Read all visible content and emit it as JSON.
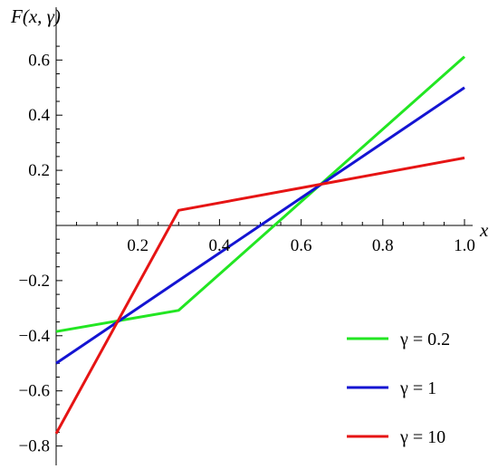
{
  "chart_data": {
    "type": "line",
    "title": "",
    "xlabel": "x",
    "ylabel": "F(x, γ)",
    "xlim": [
      0,
      1.0
    ],
    "ylim": [
      -0.8,
      0.65
    ],
    "xticks": [
      0.2,
      0.4,
      0.6,
      0.8,
      1.0
    ],
    "xtick_labels": [
      "0.2",
      "0.4",
      "0.6",
      "0.8",
      "1.0"
    ],
    "yticks": [
      -0.8,
      -0.6,
      -0.4,
      -0.2,
      0.2,
      0.4,
      0.6
    ],
    "ytick_labels": [
      "−0.8",
      "−0.6",
      "−0.4",
      "−0.2",
      "0.2",
      "0.4",
      "0.6"
    ],
    "grid": false,
    "legend_position": "bottom-right",
    "series": [
      {
        "name": "γ = 0.2",
        "color": "#22e622",
        "x": [
          0,
          0.3,
          1.0
        ],
        "y": [
          -0.385,
          -0.308,
          0.612
        ]
      },
      {
        "name": "γ = 1",
        "color": "#1414d2",
        "x": [
          0,
          0.3,
          1.0
        ],
        "y": [
          -0.5,
          -0.2,
          0.5
        ]
      },
      {
        "name": "γ = 10",
        "color": "#e61414",
        "x": [
          0,
          0.3,
          1.0
        ],
        "y": [
          -0.755,
          0.055,
          0.245
        ]
      }
    ]
  }
}
